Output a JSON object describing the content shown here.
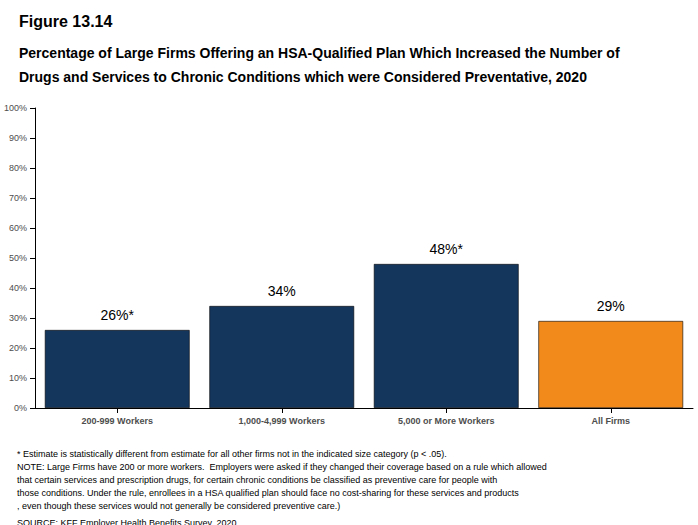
{
  "chart_data": {
    "type": "bar",
    "title": "Figure 13.14",
    "subtitle": "Percentage of Large Firms Offering an HSA-Qualified Plan Which Increased the Number of Drugs and Services to Chronic Conditions which were Considered Preventative, 2020",
    "categories": [
      "200-999 Workers",
      "1,000-4,999 Workers",
      "5,000 or More Workers",
      "All Firms"
    ],
    "values": [
      26,
      34,
      48,
      29
    ],
    "value_labels": [
      "26%*",
      "34%",
      "48%*",
      "29%"
    ],
    "colors": [
      "#14365d",
      "#14365d",
      "#14365d",
      "#f28a1b"
    ],
    "data_labels": true,
    "grid": false,
    "ylim": [
      0,
      100
    ],
    "yticks": [
      {
        "value": 0,
        "label": "0%"
      },
      {
        "value": 10,
        "label": "10%"
      },
      {
        "value": 20,
        "label": "20%"
      },
      {
        "value": 30,
        "label": "30%"
      },
      {
        "value": 40,
        "label": "40%"
      },
      {
        "value": 50,
        "label": "50%"
      },
      {
        "value": 60,
        "label": "60%"
      },
      {
        "value": 70,
        "label": "70%"
      },
      {
        "value": 80,
        "label": "80%"
      },
      {
        "value": 90,
        "label": "90%"
      },
      {
        "value": 100,
        "label": "100%"
      }
    ],
    "annotations": [
      "* Estimate is statistically different from estimate for all other firms not in the indicated size category (p < .05).",
      "NOTE: Large Firms have 200 or more workers.  Employers were asked if they changed their coverage based on a rule which allowed that certain services and prescription drugs, for certain chronic conditions be classified as preventive care for people with those conditions. Under the rule, enrollees in a HSA qualified plan should face no cost-sharing for these services and products, even though these services would not generally be considered preventive care.)",
      "SOURCE: KFF Employer Health Benefits Survey, 2020"
    ]
  }
}
